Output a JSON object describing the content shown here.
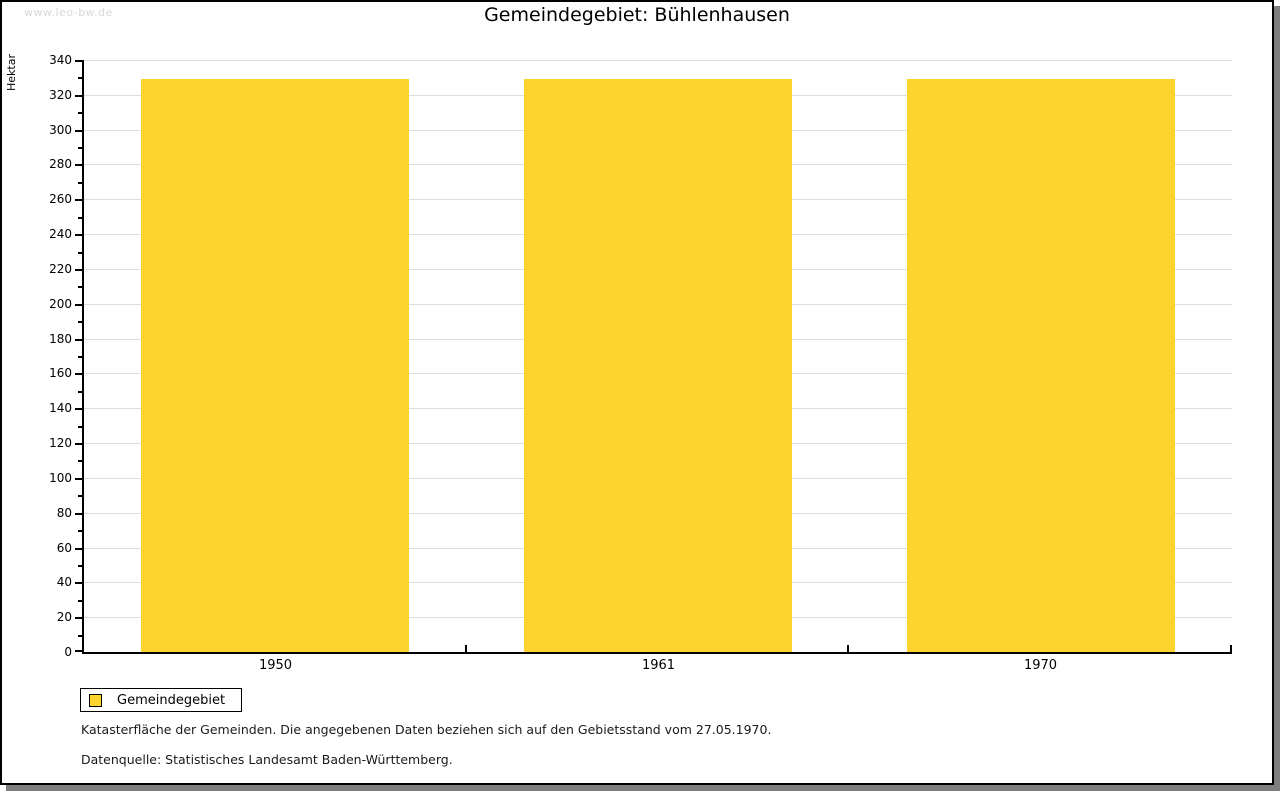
{
  "watermark": "www.leo-bw.de",
  "title": "Gemeindegebiet: Bühlenhausen",
  "chart_data": {
    "type": "bar",
    "title": "Gemeindegebiet: Bühlenhausen",
    "categories": [
      "1950",
      "1961",
      "1970"
    ],
    "series": [
      {
        "name": "Gemeindegebiet",
        "values": [
          329,
          329,
          329
        ]
      }
    ],
    "xlabel": "",
    "ylabel": "Hektar",
    "ylim": [
      0,
      340
    ],
    "ytick_step": 20,
    "minor_tick_step": 10,
    "grid": true,
    "legend_position": "bottom-left"
  },
  "legend": {
    "items": [
      {
        "label": "Gemeindegebiet",
        "color": "#fcd42d"
      }
    ]
  },
  "footer": {
    "line1": "Katasterfläche der Gemeinden. Die angegebenen Daten beziehen sich auf den Gebietsstand vom 27.05.1970.",
    "line2": "Datenquelle: Statistisches Landesamt Baden-Württemberg."
  },
  "colors": {
    "bar": "#fcd42d",
    "grid": "#dedede",
    "axis": "#000000",
    "panel_shadow": "#7f7f7f",
    "watermark": "#d8d8d8",
    "text": "#000000"
  }
}
